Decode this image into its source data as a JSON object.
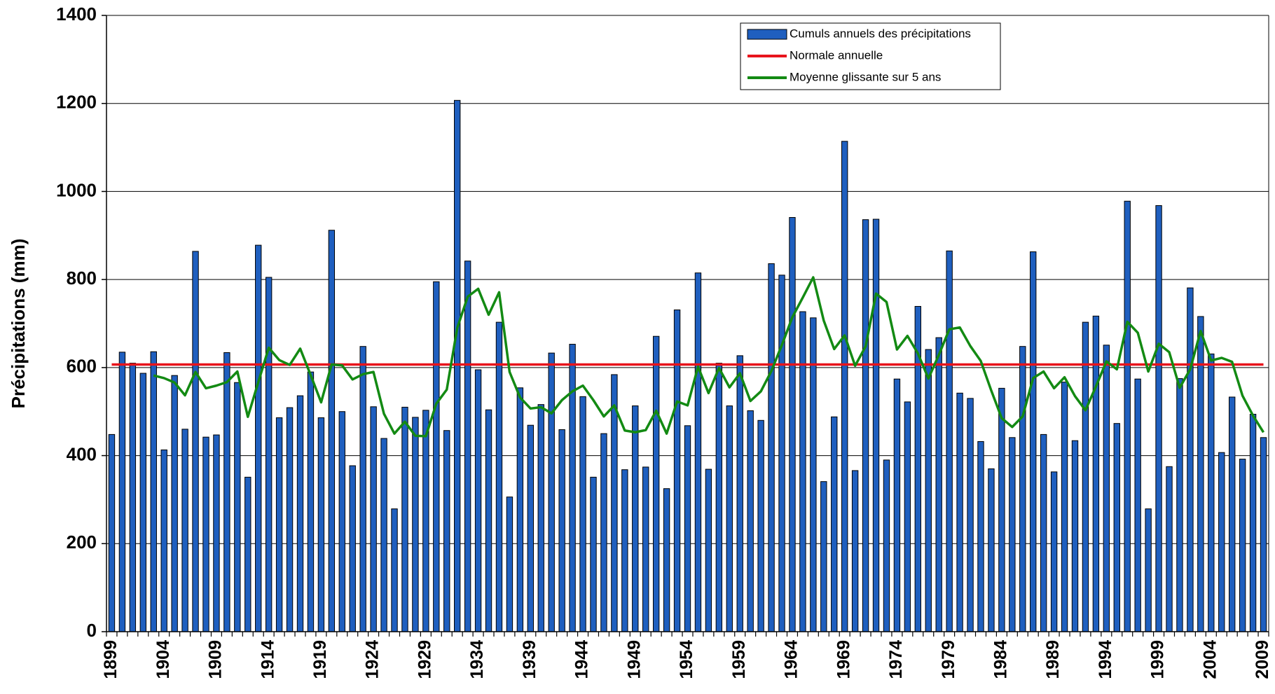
{
  "chart_data": {
    "type": "bar",
    "y_label": "Précipitations (mm)",
    "categories": [
      "1899",
      null,
      null,
      null,
      null,
      "1904",
      null,
      null,
      null,
      null,
      "1909",
      null,
      null,
      null,
      null,
      "1914",
      null,
      null,
      null,
      null,
      "1919",
      null,
      null,
      null,
      null,
      "1924",
      null,
      null,
      null,
      null,
      "1929",
      null,
      null,
      null,
      null,
      "1934",
      null,
      null,
      null,
      null,
      "1939",
      null,
      null,
      null,
      null,
      "1944",
      null,
      null,
      null,
      null,
      "1949",
      null,
      null,
      null,
      null,
      "1954",
      null,
      null,
      null,
      null,
      "1959",
      null,
      null,
      null,
      null,
      "1964",
      null,
      null,
      null,
      null,
      "1969",
      null,
      null,
      null,
      null,
      "1974",
      null,
      null,
      null,
      null,
      "1979",
      null,
      null,
      null,
      null,
      "1984",
      null,
      null,
      null,
      null,
      "1989",
      null,
      null,
      null,
      null,
      "1994",
      null,
      null,
      null,
      null,
      "1999",
      null,
      null,
      null,
      null,
      "2004",
      null,
      null,
      null,
      null,
      "2009"
    ],
    "series": [
      {
        "name": "Cumuls annuels des précipitations",
        "type": "bar",
        "color": "#1f5fbf",
        "values": [
          448,
          635,
          610,
          587,
          636,
          413,
          582,
          460,
          864,
          442,
          447,
          634,
          566,
          351,
          878,
          805,
          486,
          509,
          536,
          590,
          486,
          912,
          500,
          377,
          648,
          511,
          439,
          279,
          510,
          487,
          503,
          795,
          457,
          1207,
          842,
          595,
          504,
          703,
          306,
          554,
          469,
          516,
          633,
          459,
          653,
          534,
          351,
          450,
          584,
          368,
          513,
          374,
          671,
          325,
          731,
          468,
          815,
          369,
          610,
          513,
          627,
          502,
          480,
          836,
          810,
          941,
          727,
          713,
          341,
          488,
          1114,
          366,
          936,
          937,
          390,
          574,
          522,
          739,
          641,
          668,
          865,
          542,
          530,
          432,
          370,
          553,
          441,
          648,
          863,
          448,
          363,
          567,
          434,
          703,
          717,
          651,
          473,
          978,
          574,
          279,
          968,
          375,
          575,
          781,
          716,
          631,
          407,
          533,
          392,
          494,
          441
        ]
      },
      {
        "name": "Normale annuelle",
        "type": "line",
        "color": "#e8141c",
        "values": [
          607,
          607,
          607,
          607,
          607,
          607,
          607,
          607,
          607,
          607,
          607,
          607,
          607,
          607,
          607,
          607,
          607,
          607,
          607,
          607,
          607,
          607,
          607,
          607,
          607,
          607,
          607,
          607,
          607,
          607,
          607,
          607,
          607,
          607,
          607,
          607,
          607,
          607,
          607,
          607,
          607,
          607,
          607,
          607,
          607,
          607,
          607,
          607,
          607,
          607,
          607,
          607,
          607,
          607,
          607,
          607,
          607,
          607,
          607,
          607,
          607,
          607,
          607,
          607,
          607,
          607,
          607,
          607,
          607,
          607,
          607,
          607,
          607,
          607,
          607,
          607,
          607,
          607,
          607,
          607,
          607,
          607,
          607,
          607,
          607,
          607,
          607,
          607,
          607,
          607,
          607,
          607,
          607,
          607,
          607,
          607,
          607,
          607,
          607,
          607,
          607,
          607,
          607,
          607,
          607,
          607,
          607,
          607,
          607,
          607,
          607
        ]
      },
      {
        "name": "Moyenne glissante sur 5 ans",
        "type": "line",
        "color": "#138a13",
        "values": [
          null,
          null,
          null,
          null,
          582,
          576,
          566,
          537,
          590,
          553,
          559,
          567,
          591,
          488,
          567,
          645,
          617,
          606,
          643,
          583,
          521,
          607,
          605,
          573,
          585,
          590,
          495,
          450,
          477,
          445,
          444,
          518,
          550,
          690,
          761,
          779,
          720,
          771,
          590,
          532,
          507,
          510,
          496,
          526,
          546,
          559,
          526,
          489,
          514,
          457,
          453,
          458,
          502,
          450,
          523,
          514,
          602,
          542,
          599,
          555,
          587,
          524,
          546,
          592,
          651,
          714,
          759,
          805,
          707,
          642,
          673,
          604,
          648,
          768,
          749,
          641,
          672,
          632,
          575,
          629,
          687,
          691,
          649,
          615,
          548,
          485,
          465,
          489,
          576,
          591,
          553,
          578,
          535,
          503,
          557,
          614,
          596,
          704,
          679,
          591,
          654,
          635,
          554,
          596,
          683,
          616,
          622,
          613,
          536,
          491,
          453
        ]
      }
    ],
    "ylim": [
      0,
      1400
    ],
    "yticks": [
      0,
      200,
      400,
      600,
      800,
      1000,
      1200,
      1400
    ],
    "grid": true,
    "legend": "top-right"
  }
}
